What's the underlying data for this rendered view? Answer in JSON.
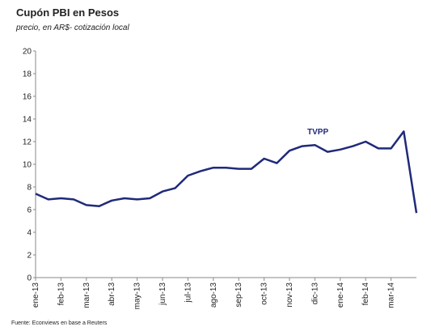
{
  "chart_data": {
    "type": "line",
    "title": "Cupón PBI en Pesos",
    "subtitle": "precio, en AR$- cotización local",
    "source": "Fuente: Econviews en base a Reuters",
    "annotation": "TVPP",
    "categories": [
      "ene-13",
      null,
      "feb-13",
      null,
      "mar-13",
      null,
      "abr-13",
      null,
      "may-13",
      null,
      "jun-13",
      null,
      "jul-13",
      null,
      "ago-13",
      null,
      "sep-13",
      null,
      "oct-13",
      null,
      "nov-13",
      null,
      "dic-13",
      null,
      "ene-14",
      null,
      "feb-14",
      null,
      "mar-14",
      null,
      null
    ],
    "series": [
      {
        "name": "TVPP",
        "color": "#1f2a7a",
        "values": [
          7.4,
          6.9,
          7.0,
          6.9,
          6.4,
          6.3,
          6.8,
          7.0,
          6.9,
          7.0,
          7.6,
          7.9,
          9.0,
          9.4,
          9.7,
          9.7,
          9.6,
          9.6,
          10.5,
          10.1,
          11.2,
          11.6,
          11.7,
          11.1,
          11.3,
          11.6,
          12.0,
          11.4,
          11.4,
          12.9,
          5.7
        ]
      }
    ],
    "ylim": [
      0,
      20
    ],
    "yticks": [
      0,
      2,
      4,
      6,
      8,
      10,
      12,
      14,
      16,
      18,
      20
    ]
  }
}
